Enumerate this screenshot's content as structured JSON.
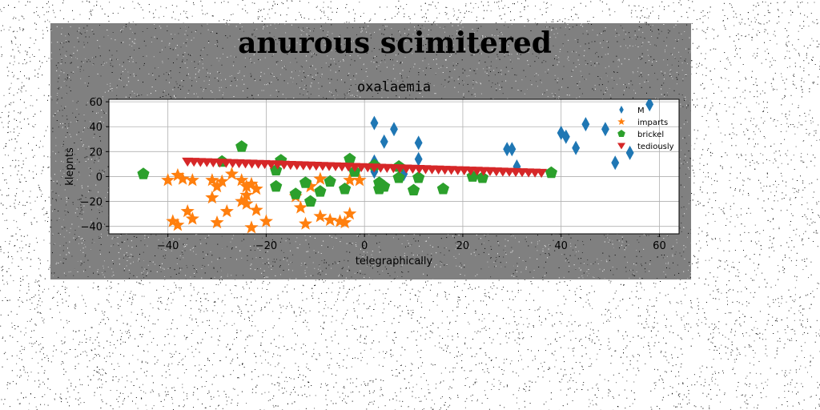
{
  "suptitle": "anurous scimitered",
  "chart_data": {
    "type": "scatter",
    "title": "oxalaemia",
    "xlabel": "telegraphically",
    "ylabel": "klepnts",
    "xlim": [
      -52,
      64
    ],
    "ylim": [
      -46,
      62
    ],
    "xticks": [
      -40,
      -20,
      0,
      20,
      40,
      60
    ],
    "yticks": [
      -40,
      -20,
      0,
      20,
      40,
      60
    ],
    "grid": true,
    "legend_position": "top-right",
    "series": [
      {
        "name": "M",
        "marker": "thin-diamond",
        "color": "#1f77b4",
        "points": [
          [
            2,
            43
          ],
          [
            4,
            28
          ],
          [
            6,
            38
          ],
          [
            11,
            27
          ],
          [
            11,
            14
          ],
          [
            2,
            12
          ],
          [
            30,
            22
          ],
          [
            29,
            22
          ],
          [
            31,
            8
          ],
          [
            40,
            35
          ],
          [
            41,
            32
          ],
          [
            43,
            23
          ],
          [
            45,
            42
          ],
          [
            49,
            38
          ],
          [
            51,
            11
          ],
          [
            54,
            19
          ],
          [
            58,
            58
          ],
          [
            2,
            4
          ],
          [
            8,
            2
          ]
        ]
      },
      {
        "name": "imparts",
        "marker": "star",
        "color": "#ff7f0e",
        "points": [
          [
            -40,
            -3
          ],
          [
            -38,
            1
          ],
          [
            -37,
            -2
          ],
          [
            -35,
            -3
          ],
          [
            -31,
            -3
          ],
          [
            -30,
            -8
          ],
          [
            -29,
            -4
          ],
          [
            -27,
            2
          ],
          [
            -25,
            -3
          ],
          [
            -24,
            -8
          ],
          [
            -24,
            -15
          ],
          [
            -23,
            -6
          ],
          [
            -22,
            -10
          ],
          [
            -31,
            -17
          ],
          [
            -25,
            -20
          ],
          [
            -24,
            -22
          ],
          [
            -36,
            -28
          ],
          [
            -35,
            -34
          ],
          [
            -28,
            -28
          ],
          [
            -22,
            -27
          ],
          [
            -30,
            -37
          ],
          [
            -39,
            -36
          ],
          [
            -38,
            -39
          ],
          [
            -23,
            -41
          ],
          [
            -20,
            -36
          ],
          [
            -14,
            -16
          ],
          [
            -13,
            -25
          ],
          [
            -12,
            -38
          ],
          [
            -9,
            -32
          ],
          [
            -7,
            -35
          ],
          [
            -5,
            -36
          ],
          [
            -3,
            -30
          ],
          [
            -4,
            -37
          ],
          [
            -3,
            -3
          ],
          [
            -1,
            -3
          ],
          [
            -9,
            -2
          ],
          [
            -11,
            -8
          ]
        ]
      },
      {
        "name": "brickel",
        "marker": "pentagon",
        "color": "#2ca02c",
        "points": [
          [
            -45,
            2
          ],
          [
            -29,
            12
          ],
          [
            -25,
            24
          ],
          [
            -17,
            13
          ],
          [
            -18,
            5
          ],
          [
            -18,
            -8
          ],
          [
            -14,
            -14
          ],
          [
            -12,
            -5
          ],
          [
            -11,
            -20
          ],
          [
            -9,
            -12
          ],
          [
            -7,
            -4
          ],
          [
            -4,
            -10
          ],
          [
            -3,
            14
          ],
          [
            -2,
            4
          ],
          [
            2,
            9
          ],
          [
            3,
            -5
          ],
          [
            3,
            -10
          ],
          [
            4,
            -8
          ],
          [
            7,
            8
          ],
          [
            7,
            -1
          ],
          [
            10,
            -11
          ],
          [
            11,
            -1
          ],
          [
            16,
            -10
          ],
          [
            22,
            0
          ],
          [
            24,
            -1
          ],
          [
            38,
            3
          ]
        ]
      },
      {
        "name": "tediously",
        "marker": "triangle-down",
        "color": "#d62728",
        "line": {
          "x0": -36,
          "x1": 36,
          "y0": 12,
          "y1": 3,
          "count": 56
        }
      }
    ]
  }
}
